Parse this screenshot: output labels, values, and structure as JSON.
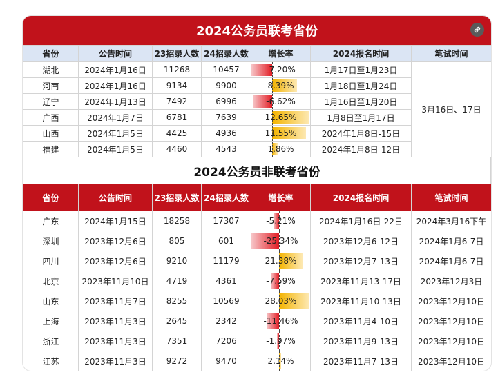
{
  "table1": {
    "title": "2024公务员联考省份",
    "headers": [
      "省份",
      "公告时间",
      "23招录人数",
      "24招录人数",
      "增长率",
      "2024报名时间",
      "笔试时间"
    ],
    "exam_time": "3月16日、17日",
    "rows": [
      {
        "province": "湖北",
        "notice": "2024年1月16日",
        "r23": "11268",
        "r24": "10457",
        "growth": "-7.20%",
        "growth_value": -7.2,
        "signup": "1月17日至1月23日"
      },
      {
        "province": "河南",
        "notice": "2024年1月16日",
        "r23": "9134",
        "r24": "9900",
        "growth": "8.39%",
        "growth_value": 8.39,
        "signup": "1月18日至1月24日"
      },
      {
        "province": "辽宁",
        "notice": "2024年1月13日",
        "r23": "7492",
        "r24": "6996",
        "growth": "-6.62%",
        "growth_value": -6.62,
        "signup": "1月16日至1月20日"
      },
      {
        "province": "广西",
        "notice": "2024年1月7日",
        "r23": "6781",
        "r24": "7639",
        "growth": "12.65%",
        "growth_value": 12.65,
        "signup": "1月8日至1月17日"
      },
      {
        "province": "山西",
        "notice": "2024年1月5日",
        "r23": "4425",
        "r24": "4936",
        "growth": "11.55%",
        "growth_value": 11.55,
        "signup": "2024年1月8日-15日"
      },
      {
        "province": "福建",
        "notice": "2024年1月5日",
        "r23": "4460",
        "r24": "4543",
        "growth": "1.86%",
        "growth_value": 1.86,
        "signup": "2024年1月8日-12日"
      }
    ]
  },
  "table2": {
    "title": "2024公务员非联考省份",
    "headers": [
      "省份",
      "公告时间",
      "23招录人数",
      "24招录人数",
      "增长率",
      "2024报名时间",
      "笔试时间"
    ],
    "rows": [
      {
        "province": "广东",
        "notice": "2024年1月15日",
        "r23": "18258",
        "r24": "17307",
        "growth": "-5.21%",
        "growth_value": -5.21,
        "signup": "2024年1月16日-22日",
        "exam": "2024年3月16下午"
      },
      {
        "province": "深圳",
        "notice": "2023年12月6日",
        "r23": "805",
        "r24": "601",
        "growth": "-25.34%",
        "growth_value": -25.34,
        "signup": "2023年12月6-12日",
        "exam": "2024年1月6-7日"
      },
      {
        "province": "四川",
        "notice": "2023年12月6日",
        "r23": "9210",
        "r24": "11179",
        "growth": "21.38%",
        "growth_value": 21.38,
        "signup": "2023年12月7-13日",
        "exam": "2024年1月6-7日"
      },
      {
        "province": "北京",
        "notice": "2023年11月10日",
        "r23": "4719",
        "r24": "4361",
        "growth": "-7.59%",
        "growth_value": -7.59,
        "signup": "2023年11月13-17日",
        "exam": "2023年12月3日"
      },
      {
        "province": "山东",
        "notice": "2023年11月7日",
        "r23": "8255",
        "r24": "10569",
        "growth": "28.03%",
        "growth_value": 28.03,
        "signup": "2023年11月10-13日",
        "exam": "2023年12月10日"
      },
      {
        "province": "上海",
        "notice": "2023年11月3日",
        "r23": "2645",
        "r24": "2342",
        "growth": "-11.46%",
        "growth_value": -11.46,
        "signup": "2023年11月4-10日",
        "exam": "2023年12月10日"
      },
      {
        "province": "浙江",
        "notice": "2023年11月3日",
        "r23": "7351",
        "r24": "7206",
        "growth": "-1.97%",
        "growth_value": -1.97,
        "signup": "2023年11月9-13日",
        "exam": "2023年12月10日"
      },
      {
        "province": "江苏",
        "notice": "2023年11月3日",
        "r23": "9272",
        "r24": "9470",
        "growth": "2.14%",
        "growth_value": 2.14,
        "signup": "2023年11月7-13日",
        "exam": "2023年12月10日"
      }
    ]
  },
  "icons": {
    "link": "link-icon"
  },
  "colors": {
    "accent_red": "#c1121b",
    "header_blue": "#dbe5f4",
    "negative_bar": "#e21c24",
    "positive_bar": "#f4b400"
  }
}
